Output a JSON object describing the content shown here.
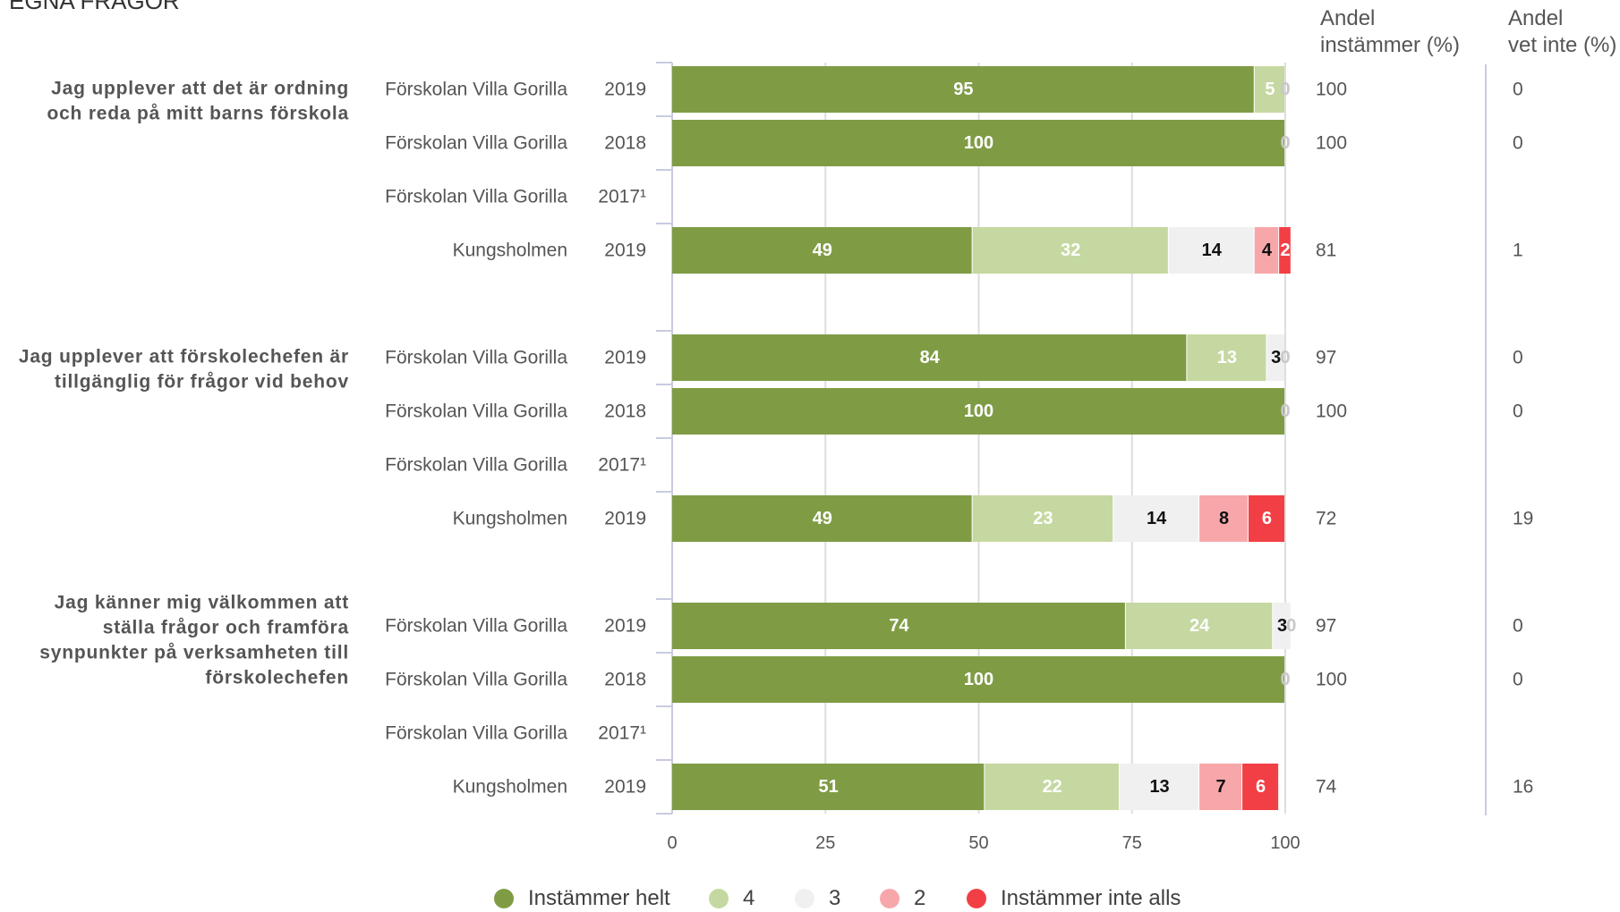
{
  "page": {
    "title": "EGNA FRÅGOR"
  },
  "headers": {
    "agree": [
      "Andel",
      "instämmer (%)"
    ],
    "dontknow": [
      "Andel",
      "vet inte (%)"
    ]
  },
  "colors": {
    "Instämmer helt": "#7f9c45",
    "4": "#c5d8a1",
    "3": "#f0f0f0",
    "2": "#f7a7aa",
    "Instämmer inte alls": "#f23f45"
  },
  "chart_data": {
    "type": "bar",
    "orientation": "horizontal",
    "stacked": true,
    "xlim": [
      0,
      100
    ],
    "xticks": [
      "0",
      "25",
      "50",
      "75",
      "100"
    ],
    "legend_position": "bottom",
    "series": [
      {
        "name": "Instämmer helt"
      },
      {
        "name": "4"
      },
      {
        "name": "3"
      },
      {
        "name": "2"
      },
      {
        "name": "Instämmer inte alls"
      }
    ],
    "questions": [
      {
        "label": [
          "Jag upplever att det är ordning",
          "och reda på mitt barns förskola"
        ],
        "rows": [
          {
            "unit": "Förskolan Villa Gorilla",
            "year": "2019",
            "values": [
              95,
              5,
              0,
              0,
              0
            ],
            "labels": [
              "95",
              "5",
              "0",
              "",
              ""
            ],
            "agree": "100",
            "dontknow": "0"
          },
          {
            "unit": "Förskolan Villa Gorilla",
            "year": "2018",
            "values": [
              100,
              0,
              0,
              0,
              0
            ],
            "labels": [
              "100",
              "",
              "0",
              "",
              ""
            ],
            "agree": "100",
            "dontknow": "0"
          },
          {
            "unit": "Förskolan Villa Gorilla",
            "year": "2017¹",
            "values": null,
            "labels": null,
            "agree": "",
            "dontknow": ""
          },
          {
            "unit": "Kungsholmen",
            "year": "2019",
            "values": [
              49,
              32,
              14,
              4,
              2
            ],
            "labels": [
              "49",
              "32",
              "14",
              "4",
              "2"
            ],
            "agree": "81",
            "dontknow": "1"
          }
        ]
      },
      {
        "label": [
          "Jag upplever att förskolechefen är",
          "tillgänglig för frågor vid behov"
        ],
        "rows": [
          {
            "unit": "Förskolan Villa Gorilla",
            "year": "2019",
            "values": [
              84,
              13,
              3,
              0,
              0
            ],
            "labels": [
              "84",
              "13",
              "3",
              "0",
              ""
            ],
            "agree": "97",
            "dontknow": "0"
          },
          {
            "unit": "Förskolan Villa Gorilla",
            "year": "2018",
            "values": [
              100,
              0,
              0,
              0,
              0
            ],
            "labels": [
              "100",
              "",
              "0",
              "",
              ""
            ],
            "agree": "100",
            "dontknow": "0"
          },
          {
            "unit": "Förskolan Villa Gorilla",
            "year": "2017¹",
            "values": null,
            "labels": null,
            "agree": "",
            "dontknow": ""
          },
          {
            "unit": "Kungsholmen",
            "year": "2019",
            "values": [
              49,
              23,
              14,
              8,
              6
            ],
            "labels": [
              "49",
              "23",
              "14",
              "8",
              "6"
            ],
            "agree": "72",
            "dontknow": "19"
          }
        ]
      },
      {
        "label": [
          "Jag känner mig välkommen att",
          "ställa frågor och framföra",
          "synpunkter på verksamheten till",
          "förskolechefen"
        ],
        "rows": [
          {
            "unit": "Förskolan Villa Gorilla",
            "year": "2019",
            "values": [
              74,
              24,
              3,
              0,
              0
            ],
            "labels": [
              "74",
              "24",
              "3",
              "0",
              ""
            ],
            "agree": "97",
            "dontknow": "0"
          },
          {
            "unit": "Förskolan Villa Gorilla",
            "year": "2018",
            "values": [
              100,
              0,
              0,
              0,
              0
            ],
            "labels": [
              "100",
              "",
              "0",
              "",
              ""
            ],
            "agree": "100",
            "dontknow": "0"
          },
          {
            "unit": "Förskolan Villa Gorilla",
            "year": "2017¹",
            "values": null,
            "labels": null,
            "agree": "",
            "dontknow": ""
          },
          {
            "unit": "Kungsholmen",
            "year": "2019",
            "values": [
              51,
              22,
              13,
              7,
              6
            ],
            "labels": [
              "51",
              "22",
              "13",
              "7",
              "6"
            ],
            "agree": "74",
            "dontknow": "16"
          }
        ]
      }
    ]
  }
}
